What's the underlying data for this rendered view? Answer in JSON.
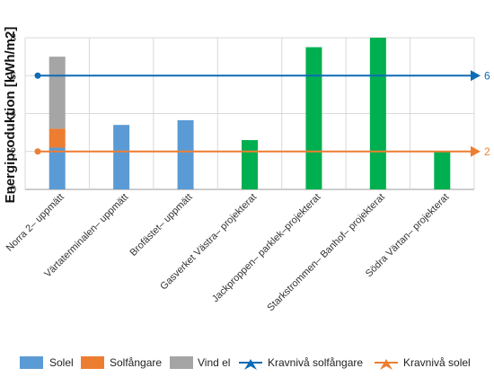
{
  "chart_data": {
    "type": "bar",
    "stacked": true,
    "ylabel": "Energiproduktion [kWh/m2]",
    "ylim": [
      0,
      8
    ],
    "yticks": [
      0,
      2,
      4,
      6,
      8
    ],
    "grid": true,
    "legend_position": "bottom",
    "categories": [
      "Norra 2– uppmätt",
      "Värtaterminalen– uppmätt",
      "Brofästet– uppmätt",
      "Gasverket Västra– projekterat",
      "Jackproppen– parklek–projekterat",
      "Starkstrommen– Banhof– projekterat",
      "Södra Värtan– projekterat"
    ],
    "series": [
      {
        "name": "Solel",
        "color": "#5b9bd5",
        "values": [
          2.2,
          3.4,
          3.65,
          0,
          0,
          0,
          0
        ]
      },
      {
        "name": "Solfångare",
        "color": "#ed7d31",
        "values": [
          1.0,
          0,
          0,
          0,
          0,
          0,
          0
        ]
      },
      {
        "name": "Vind el",
        "color": "#a5a5a5",
        "values": [
          3.8,
          0,
          0,
          0,
          0,
          0,
          0
        ]
      },
      {
        "name": "",
        "color": "#00b050",
        "values": [
          0,
          0,
          0,
          2.6,
          7.5,
          8.0,
          2.0
        ]
      }
    ],
    "reference_lines": [
      {
        "name": "Kravnivå solfångare",
        "value": 6,
        "label": "6",
        "color": "#0e6bb5"
      },
      {
        "name": "Kravnivå solel",
        "value": 2,
        "label": "2",
        "color": "#ed7d31"
      }
    ]
  }
}
